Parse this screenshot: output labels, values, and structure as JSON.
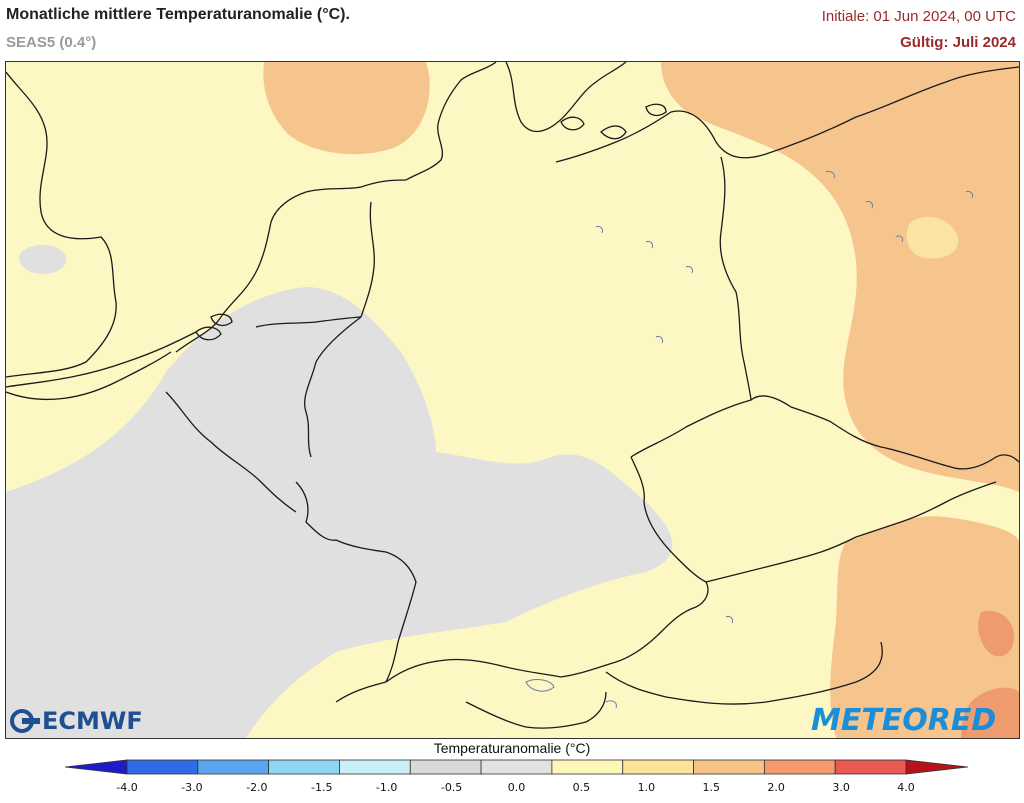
{
  "header": {
    "title": "Monatliche mittlere Temperaturanomalie (°C).",
    "subtitle": "SEAS5 (0.4°)",
    "init": "Initiale: 01 Jun 2024, 00 UTC",
    "valid": "Gültig: Juli 2024"
  },
  "logos": {
    "left": "ECMWF",
    "right": "METEORED"
  },
  "legend": {
    "title": "Temperaturanomalie (°C)",
    "ticks": [
      "-4.0",
      "-3.0",
      "-2.0",
      "-1.5",
      "-1.0",
      "-0.5",
      "0.0",
      "0.5",
      "1.0",
      "1.5",
      "2.0",
      "3.0",
      "4.0"
    ],
    "colors": [
      "#1a1adb",
      "#2f6be6",
      "#5aa6ee",
      "#8fd6f2",
      "#c8f0f6",
      "#d9d9d9",
      "#e2e2e2",
      "#fdf7b8",
      "#fbe39a",
      "#f7c488",
      "#f49a6e",
      "#e85a52"
    ],
    "end_low": "#1c1cc8",
    "end_high": "#b5121b"
  },
  "map": {
    "field_colors": {
      "near_zero": "#e0e0e0",
      "low_positive": "#fdf7c3",
      "mid_positive": "#fbe8a6",
      "high_positive": "#f6c58e",
      "very_high": "#ee9b6d",
      "border": "#1a1a1a",
      "lakes": "#6b7ea6"
    }
  }
}
